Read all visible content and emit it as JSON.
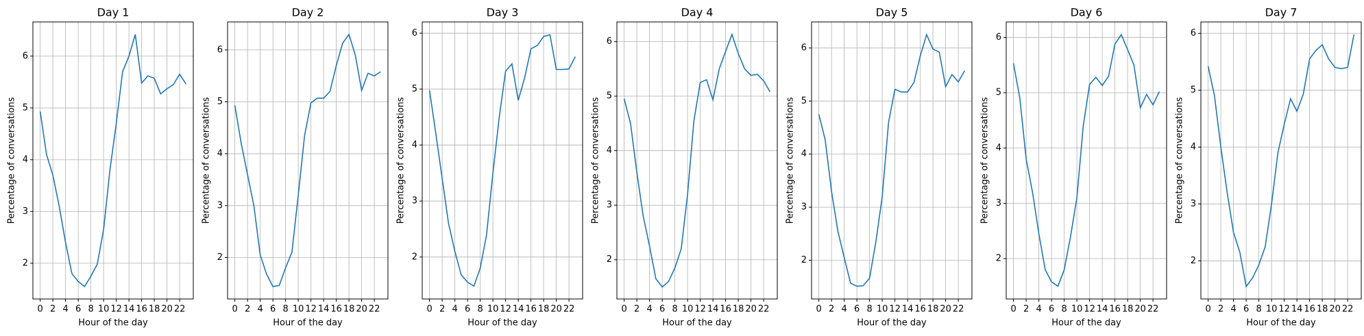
{
  "chart_data": [
    {
      "type": "line",
      "title": "Day 1",
      "x_label": "Hour of the day",
      "y_label": "Percentage of conversations",
      "x": [
        0,
        1,
        2,
        3,
        4,
        5,
        6,
        7,
        8,
        9,
        10,
        11,
        12,
        13,
        14,
        15,
        16,
        17,
        18,
        19,
        20,
        21,
        22,
        23
      ],
      "values": [
        4.93,
        4.1,
        3.7,
        3.1,
        2.4,
        1.8,
        1.65,
        1.55,
        1.75,
        1.98,
        2.65,
        3.8,
        4.7,
        5.7,
        6.0,
        6.42,
        5.48,
        5.62,
        5.57,
        5.27,
        5.37,
        5.45,
        5.65,
        5.46
      ],
      "color": "#1f77b4",
      "xlim": [
        -1.15,
        24.15
      ],
      "ylim": [
        1.31,
        6.66
      ],
      "xticks": [
        0,
        2,
        4,
        6,
        8,
        10,
        12,
        14,
        16,
        18,
        20,
        22
      ],
      "yticks": [
        2,
        3,
        4,
        5,
        6
      ],
      "grid": true
    },
    {
      "type": "line",
      "title": "Day 2",
      "x_label": "Hour of the day",
      "y_label": "Percentage of conversations",
      "x": [
        0,
        1,
        2,
        3,
        4,
        5,
        6,
        7,
        8,
        9,
        10,
        11,
        12,
        13,
        14,
        15,
        16,
        17,
        18,
        19,
        20,
        21,
        22,
        23
      ],
      "values": [
        4.93,
        4.2,
        3.6,
        3.0,
        2.05,
        1.68,
        1.44,
        1.46,
        1.8,
        2.1,
        3.2,
        4.35,
        4.98,
        5.07,
        5.07,
        5.2,
        5.7,
        6.13,
        6.3,
        5.9,
        5.22,
        5.55,
        5.5,
        5.58
      ],
      "color": "#1f77b4",
      "xlim": [
        -1.15,
        24.15
      ],
      "ylim": [
        1.2,
        6.54
      ],
      "xticks": [
        0,
        2,
        4,
        6,
        8,
        10,
        12,
        14,
        16,
        18,
        20,
        22
      ],
      "yticks": [
        2,
        3,
        4,
        5,
        6
      ],
      "grid": true
    },
    {
      "type": "line",
      "title": "Day 3",
      "x_label": "Hour of the day",
      "y_label": "Percentage of conversations",
      "x": [
        0,
        1,
        2,
        3,
        4,
        5,
        6,
        7,
        8,
        9,
        10,
        11,
        12,
        13,
        14,
        15,
        16,
        17,
        18,
        19,
        20,
        21,
        22,
        23
      ],
      "values": [
        4.98,
        4.2,
        3.4,
        2.6,
        2.1,
        1.68,
        1.55,
        1.48,
        1.8,
        2.4,
        3.5,
        4.5,
        5.32,
        5.45,
        4.8,
        5.2,
        5.72,
        5.78,
        5.94,
        5.97,
        5.35,
        5.35,
        5.36,
        5.58
      ],
      "color": "#1f77b4",
      "xlim": [
        -1.15,
        24.15
      ],
      "ylim": [
        1.25,
        6.2
      ],
      "xticks": [
        0,
        2,
        4,
        6,
        8,
        10,
        12,
        14,
        16,
        18,
        20,
        22
      ],
      "yticks": [
        2,
        3,
        4,
        5,
        6
      ],
      "grid": true
    },
    {
      "type": "line",
      "title": "Day 4",
      "x_label": "Hour of the day",
      "y_label": "Percentage of conversations",
      "x": [
        0,
        1,
        2,
        3,
        4,
        5,
        6,
        7,
        8,
        9,
        10,
        11,
        12,
        13,
        14,
        15,
        16,
        17,
        18,
        19,
        20,
        21,
        22,
        23
      ],
      "values": [
        4.95,
        4.5,
        3.6,
        2.8,
        2.25,
        1.65,
        1.5,
        1.6,
        1.85,
        2.2,
        3.2,
        4.55,
        5.25,
        5.3,
        4.93,
        5.5,
        5.82,
        6.13,
        5.78,
        5.5,
        5.38,
        5.4,
        5.28,
        5.08
      ],
      "color": "#1f77b4",
      "xlim": [
        -1.15,
        24.15
      ],
      "ylim": [
        1.28,
        6.36
      ],
      "xticks": [
        0,
        2,
        4,
        6,
        8,
        10,
        12,
        14,
        16,
        18,
        20,
        22
      ],
      "yticks": [
        2,
        3,
        4,
        5,
        6
      ],
      "grid": true
    },
    {
      "type": "line",
      "title": "Day 5",
      "x_label": "Hour of the day",
      "y_label": "Percentage of conversations",
      "x": [
        0,
        1,
        2,
        3,
        4,
        5,
        6,
        7,
        8,
        9,
        10,
        11,
        12,
        13,
        14,
        15,
        16,
        17,
        18,
        19,
        20,
        21,
        22,
        23
      ],
      "values": [
        4.75,
        4.27,
        3.3,
        2.55,
        2.05,
        1.57,
        1.51,
        1.52,
        1.66,
        2.35,
        3.2,
        4.6,
        5.22,
        5.17,
        5.17,
        5.35,
        5.85,
        6.25,
        5.98,
        5.92,
        5.27,
        5.5,
        5.36,
        5.57
      ],
      "color": "#1f77b4",
      "xlim": [
        -1.15,
        24.15
      ],
      "ylim": [
        1.27,
        6.49
      ],
      "xticks": [
        0,
        2,
        4,
        6,
        8,
        10,
        12,
        14,
        16,
        18,
        20,
        22
      ],
      "yticks": [
        2,
        3,
        4,
        5,
        6
      ],
      "grid": true
    },
    {
      "type": "line",
      "title": "Day 6",
      "x_label": "Hour of the day",
      "y_label": "Percentage of conversations",
      "x": [
        0,
        1,
        2,
        3,
        4,
        5,
        6,
        7,
        8,
        9,
        10,
        11,
        12,
        13,
        14,
        15,
        16,
        17,
        18,
        19,
        20,
        21,
        22,
        23
      ],
      "values": [
        5.53,
        4.9,
        3.8,
        3.2,
        2.45,
        1.8,
        1.58,
        1.5,
        1.8,
        2.4,
        3.1,
        4.4,
        5.15,
        5.28,
        5.13,
        5.3,
        5.88,
        6.05,
        5.78,
        5.5,
        4.73,
        4.97,
        4.78,
        5.02
      ],
      "color": "#1f77b4",
      "xlim": [
        -1.15,
        24.15
      ],
      "ylim": [
        1.27,
        6.28
      ],
      "xticks": [
        0,
        2,
        4,
        6,
        8,
        10,
        12,
        14,
        16,
        18,
        20,
        22
      ],
      "yticks": [
        2,
        3,
        4,
        5,
        6
      ],
      "grid": true
    },
    {
      "type": "line",
      "title": "Day 7",
      "x_label": "Hour of the day",
      "y_label": "Percentage of conversations",
      "x": [
        0,
        1,
        2,
        3,
        4,
        5,
        6,
        7,
        8,
        9,
        10,
        11,
        12,
        13,
        14,
        15,
        16,
        17,
        18,
        19,
        20,
        21,
        22,
        23
      ],
      "values": [
        5.42,
        4.9,
        4.0,
        3.2,
        2.5,
        2.15,
        1.55,
        1.7,
        1.93,
        2.25,
        3.0,
        3.9,
        4.4,
        4.85,
        4.63,
        4.93,
        5.55,
        5.7,
        5.8,
        5.55,
        5.4,
        5.38,
        5.4,
        5.98
      ],
      "color": "#1f77b4",
      "xlim": [
        -1.15,
        24.15
      ],
      "ylim": [
        1.33,
        6.2
      ],
      "xticks": [
        0,
        2,
        4,
        6,
        8,
        10,
        12,
        14,
        16,
        18,
        20,
        22
      ],
      "yticks": [
        2,
        3,
        4,
        5,
        6
      ],
      "grid": true
    }
  ]
}
